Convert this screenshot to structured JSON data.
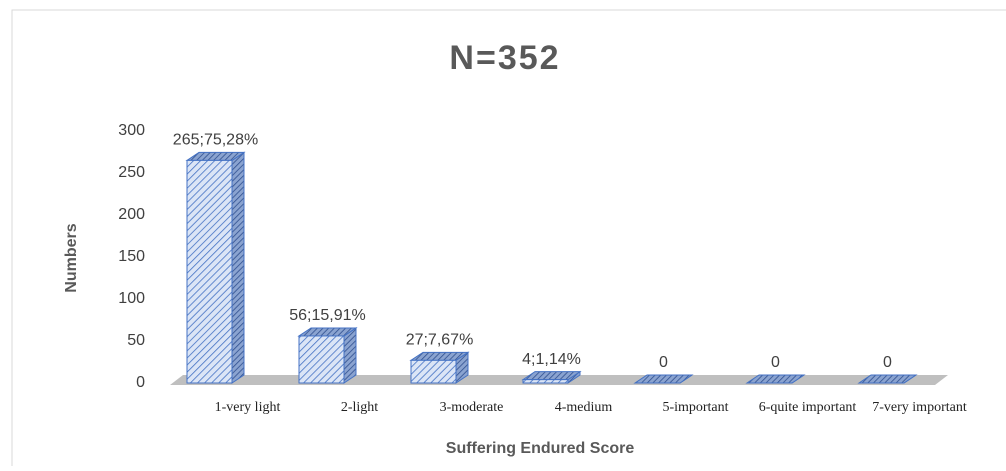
{
  "chart_data": {
    "type": "bar3d",
    "title": "N=352",
    "xlabel": "Suffering Endured Score",
    "ylabel": "Numbers",
    "categories": [
      "1-very light",
      "2-light",
      "3-moderate",
      "4-medium",
      "5-important",
      "6-quite important",
      "7-very important"
    ],
    "values": [
      265,
      56,
      27,
      4,
      0,
      0,
      0
    ],
    "value_labels": [
      "265;75,28%",
      "56;15,91%",
      "27;7,67%",
      "4;1,14%",
      "0",
      "0",
      "0"
    ],
    "color": "#4472c4",
    "ylim": [
      0,
      300
    ],
    "yticks": [
      0,
      50,
      100,
      150,
      200,
      250,
      300
    ],
    "grid": false
  }
}
